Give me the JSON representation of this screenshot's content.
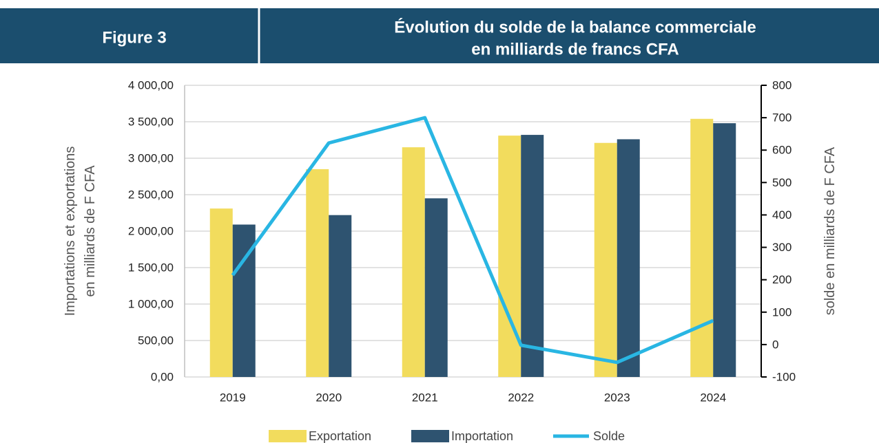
{
  "chart_data": {
    "type": "bar_line",
    "figure_label": "Figure 3",
    "title_lines": [
      "Évolution du solde de la balance commerciale",
      "en milliards de francs CFA"
    ],
    "y_label_lines": [
      "Importations et exportations",
      "en milliards de F CFA"
    ],
    "y2_label": "solde en milliards de F CFA",
    "categories": [
      "2019",
      "2020",
      "2021",
      "2022",
      "2023",
      "2024"
    ],
    "series": [
      {
        "name": "Exportation",
        "type": "bar",
        "color": "#f2dc5d",
        "values": [
          2310,
          2850,
          3150,
          3310,
          3210,
          3540
        ]
      },
      {
        "name": "Importation",
        "type": "bar",
        "color": "#2e5370",
        "values": [
          2090,
          2220,
          2450,
          3320,
          3260,
          3480
        ]
      },
      {
        "name": "Solde",
        "type": "line",
        "axis": "y2",
        "color": "#29b6e3",
        "values": [
          214,
          622,
          700,
          -2,
          -55,
          74
        ]
      }
    ],
    "ylim": [
      0,
      4000
    ],
    "yticks": [
      {
        "value": 0,
        "label": "0,00"
      },
      {
        "value": 500,
        "label": "500,00"
      },
      {
        "value": 1000,
        "label": "1 000,00"
      },
      {
        "value": 1500,
        "label": "1 500,00"
      },
      {
        "value": 2000,
        "label": "2 000,00"
      },
      {
        "value": 2500,
        "label": "2 500,00"
      },
      {
        "value": 3000,
        "label": "3 000,00"
      },
      {
        "value": 3500,
        "label": "3 500,00"
      },
      {
        "value": 4000,
        "label": "4 000,00"
      }
    ],
    "y2lim": [
      -100,
      800
    ],
    "y2ticks": [
      -100,
      0,
      100,
      200,
      300,
      400,
      500,
      600,
      700,
      800
    ],
    "grid": true,
    "legend": "bottom"
  }
}
